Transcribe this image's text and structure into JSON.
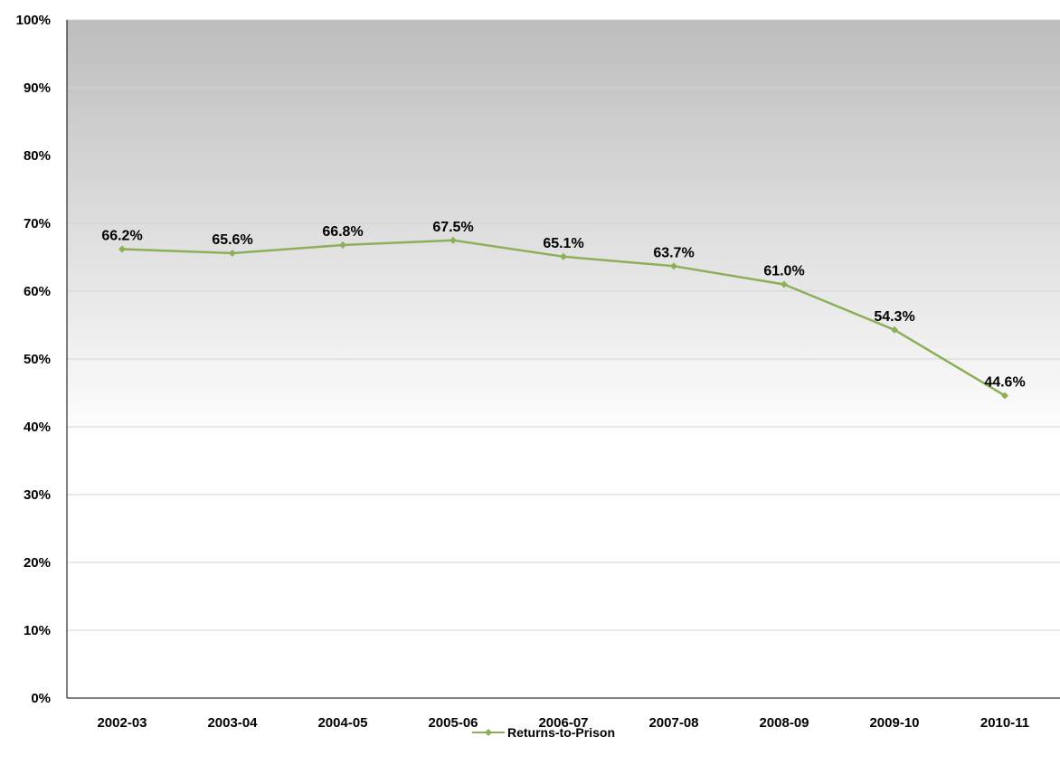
{
  "chart_data": {
    "type": "line",
    "categories": [
      "2002-03",
      "2003-04",
      "2004-05",
      "2005-06",
      "2006-07",
      "2007-08",
      "2008-09",
      "2009-10",
      "2010-11"
    ],
    "series": [
      {
        "name": "Returns-to-Prison",
        "values": [
          66.2,
          65.6,
          66.8,
          67.5,
          65.1,
          63.7,
          61.0,
          54.3,
          44.6
        ],
        "data_labels": [
          "66.2%",
          "65.6%",
          "66.8%",
          "67.5%",
          "65.1%",
          "63.7%",
          "61.0%",
          "54.3%",
          "44.6%"
        ],
        "color": "#8cb05a"
      }
    ],
    "y_ticks": [
      "0%",
      "10%",
      "20%",
      "30%",
      "40%",
      "50%",
      "60%",
      "70%",
      "80%",
      "90%",
      "100%"
    ],
    "ylim": [
      0,
      100
    ],
    "grid": true,
    "legend_position": "bottom",
    "background_gradient": [
      "#bdbdbd",
      "#ffffff"
    ]
  }
}
